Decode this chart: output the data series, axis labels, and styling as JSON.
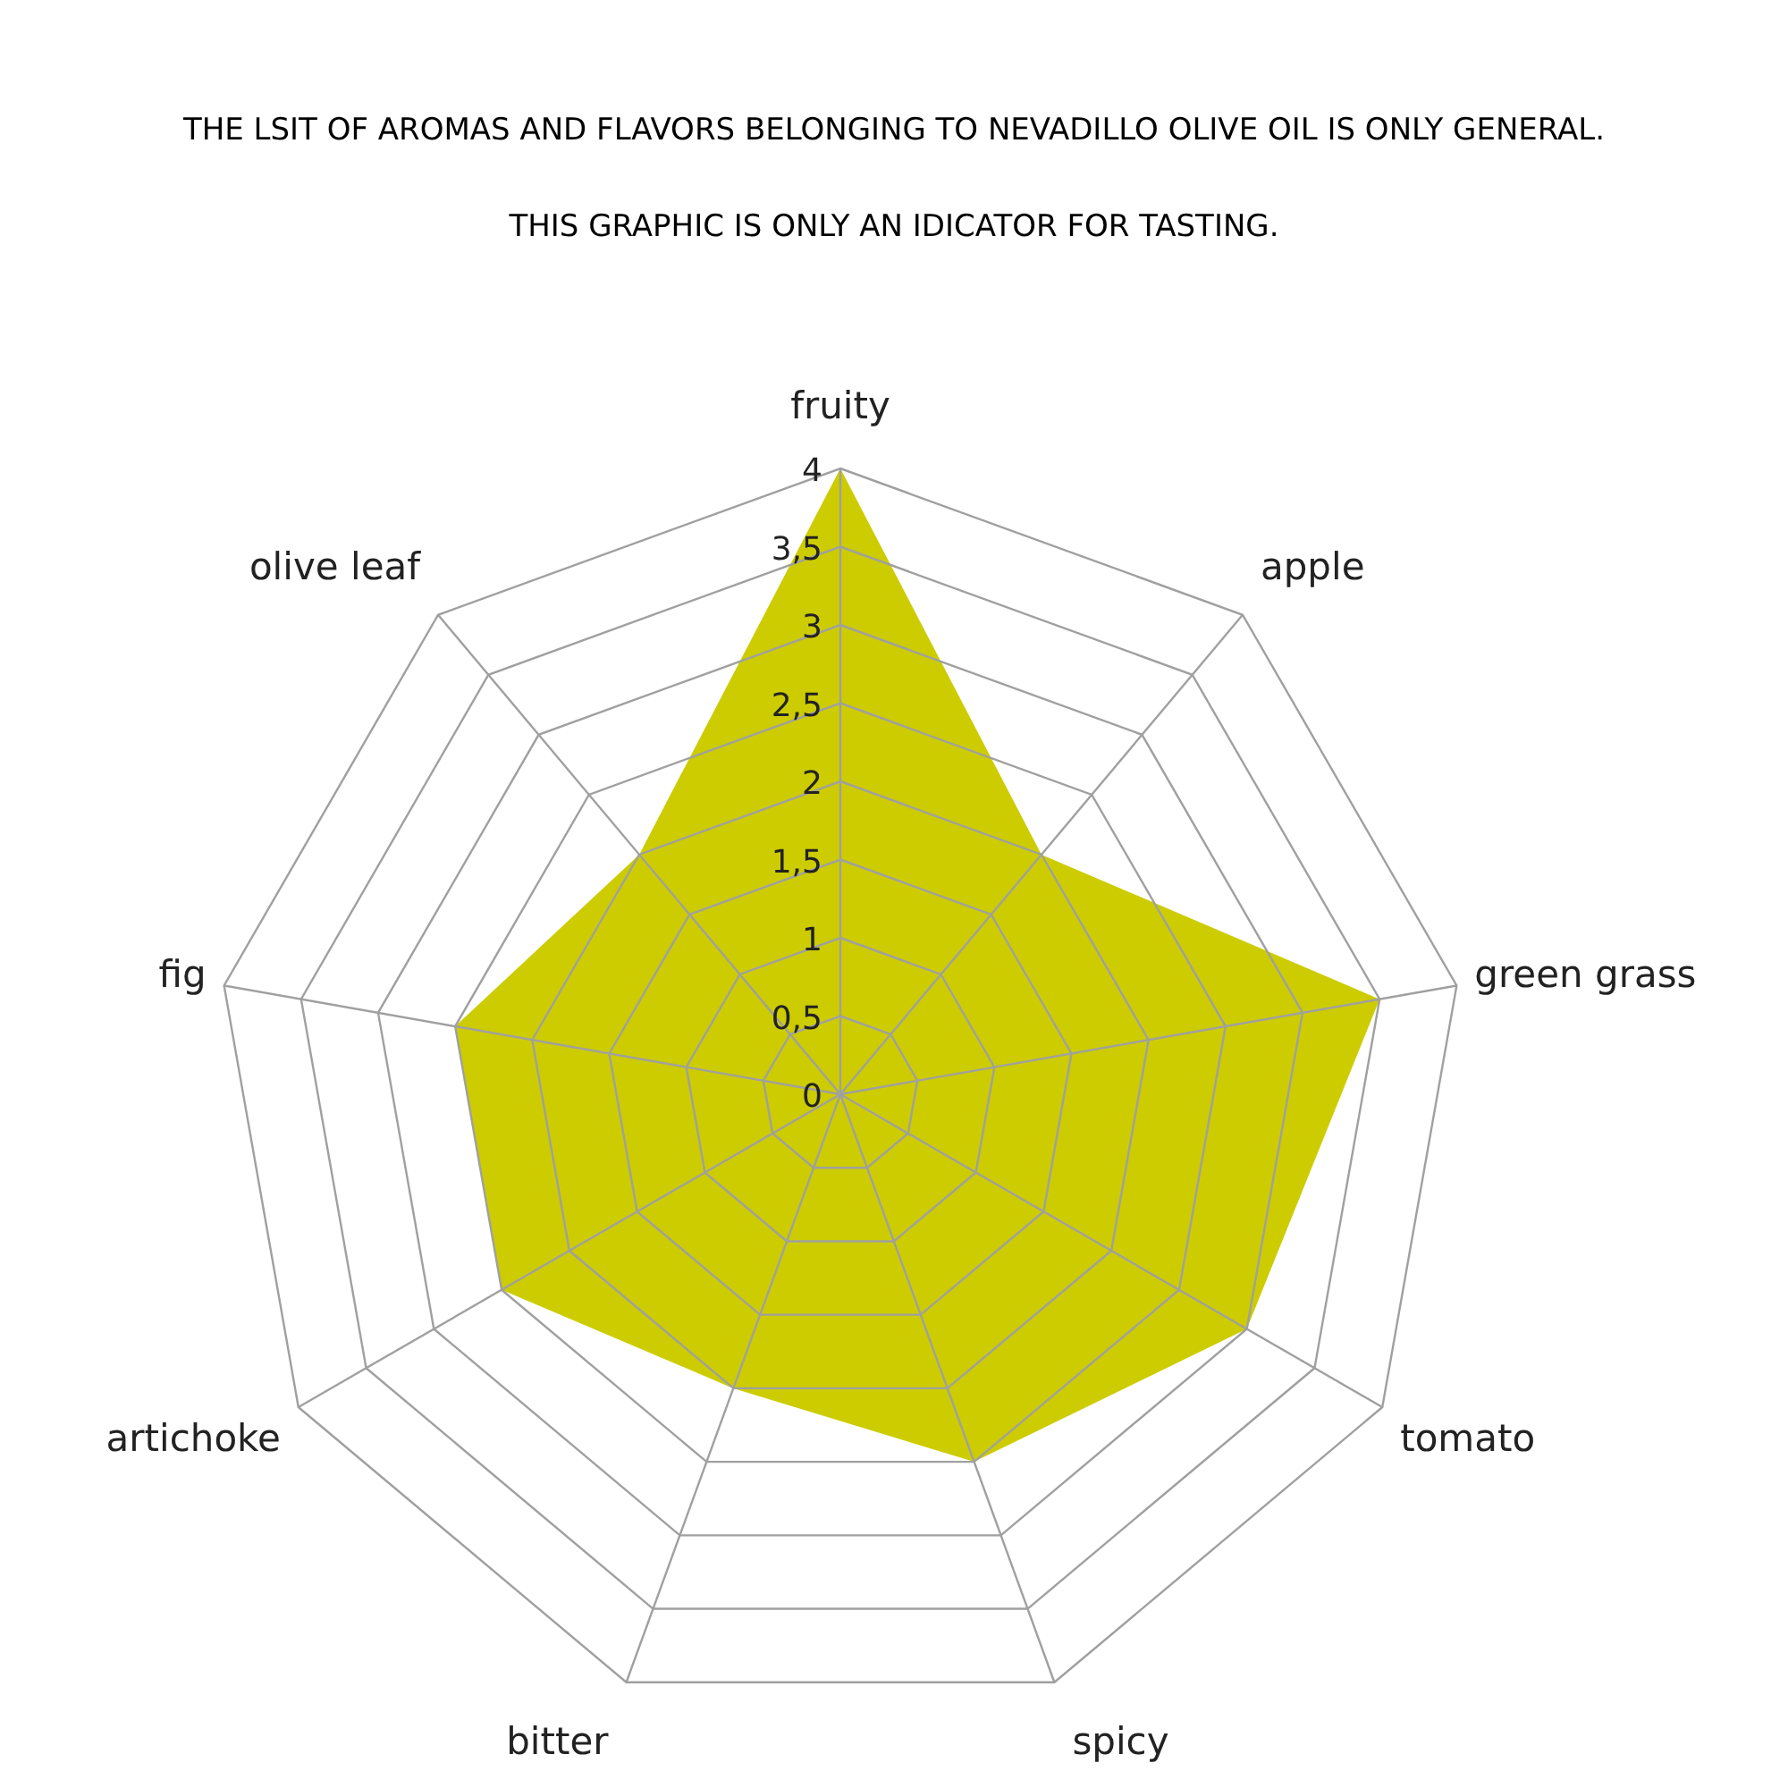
{
  "chart_data": {
    "type": "radar",
    "title": "THE LSIT OF AROMAS AND FLAVORS BELONGING TO NEVADILLO OLIVE OIL IS ONLY GENERAL.",
    "subtitle": "THIS GRAPHIC IS ONLY AN IDICATOR FOR TASTING.",
    "categories": [
      "fruity",
      "apple",
      "green grass",
      "tomato",
      "spicy",
      "bitter",
      "artichoke",
      "fig",
      "olive leaf"
    ],
    "series": [
      {
        "color": "#cccc00",
        "values": [
          4,
          2,
          3.5,
          3,
          2.5,
          2,
          2.5,
          2.5,
          2
        ]
      }
    ],
    "ylim": [
      0,
      4
    ],
    "yticks": [
      0,
      {
        "value": 0.5,
        "label": "0,5"
      },
      1,
      {
        "value": 1.5,
        "label": "1,5"
      },
      2,
      {
        "value": 2.5,
        "label": "2,5"
      },
      3,
      {
        "value": 3.5,
        "label": "3,5"
      },
      4
    ],
    "grid": true
  }
}
